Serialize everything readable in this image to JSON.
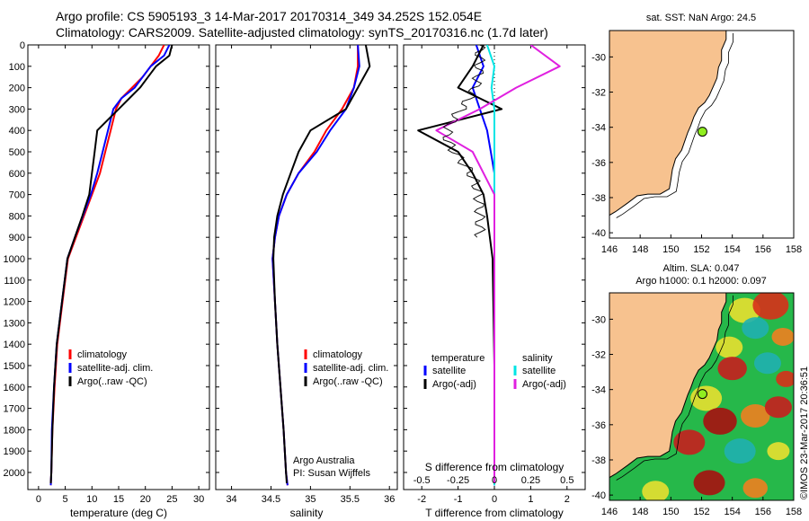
{
  "header": {
    "line1": "Argo profile: CS 5905193_3 14-Mar-2017 20170314_349 34.252S 152.054E",
    "line2": "Climatology: CARS2009. Satellite-adjusted climatology: synTS_20170316.nc (1.7d later)"
  },
  "stamp": "©IMOS 23-Mar-2017 20:36:51",
  "colors": {
    "climatology": "#ff0000",
    "satellite": "#0000ff",
    "argo": "#000000",
    "sal_satellite": "#00e5e5",
    "sal_argo": "#e020e0",
    "land": "#f7c28f",
    "float_marker": "#90ee20"
  },
  "chart_data": [
    {
      "id": "temperature",
      "type": "line",
      "xlabel": "temperature (deg C)",
      "ylabel": "",
      "xlim": [
        -2,
        32
      ],
      "ylim": [
        2080,
        0
      ],
      "xticks": [
        0,
        5,
        10,
        15,
        20,
        25,
        30
      ],
      "yticks": [
        0,
        100,
        200,
        300,
        400,
        500,
        600,
        700,
        800,
        900,
        1000,
        1100,
        1200,
        1300,
        1400,
        1500,
        1600,
        1700,
        1800,
        1900,
        2000
      ],
      "legend": {
        "position": "bottom-left",
        "entries": [
          "climatology",
          "satellite-adj. clim.",
          "Argo(..raw -QC)"
        ]
      },
      "series": [
        {
          "name": "climatology",
          "color": "#ff0000",
          "x": [
            23.5,
            22.5,
            21.0,
            19.5,
            17.5,
            15.5,
            14.5,
            13.5,
            12.5,
            11.5,
            10.0,
            8.5,
            7.0,
            5.5,
            4.5,
            3.5,
            3.0,
            2.6,
            2.4,
            2.3
          ],
          "y": [
            0,
            50,
            100,
            150,
            200,
            250,
            300,
            400,
            500,
            600,
            700,
            800,
            900,
            1000,
            1200,
            1400,
            1600,
            1800,
            2000,
            2060
          ]
        },
        {
          "name": "satellite-adj. clim.",
          "color": "#0000ff",
          "x": [
            24.5,
            23.5,
            21.0,
            19.5,
            18.0,
            15.5,
            14.0,
            13.0,
            12.0,
            11.0,
            9.8,
            8.3,
            6.8,
            5.4,
            4.4,
            3.4,
            2.9,
            2.5,
            2.4,
            2.3
          ],
          "y": [
            0,
            50,
            100,
            150,
            200,
            250,
            300,
            400,
            500,
            600,
            700,
            800,
            900,
            1000,
            1200,
            1400,
            1600,
            1800,
            2000,
            2060
          ]
        },
        {
          "name": "Argo(..raw -QC)",
          "color": "#000000",
          "x": [
            25.0,
            24.5,
            22.0,
            20.5,
            19.0,
            17.0,
            15.0,
            11.0,
            10.5,
            10.0,
            9.5,
            8.2,
            6.8,
            5.4,
            4.4,
            3.4,
            2.9,
            2.6,
            2.4,
            2.3
          ],
          "y": [
            0,
            50,
            100,
            150,
            200,
            250,
            300,
            400,
            500,
            600,
            700,
            800,
            900,
            1000,
            1200,
            1400,
            1600,
            1800,
            2000,
            2050
          ]
        }
      ]
    },
    {
      "id": "salinity",
      "type": "line",
      "xlabel": "salinity",
      "ylabel": "",
      "xlim": [
        33.8,
        36.1
      ],
      "ylim": [
        2080,
        0
      ],
      "xticks": [
        34,
        34.5,
        35,
        35.5,
        36
      ],
      "legend": {
        "position": "bottom-right",
        "entries": [
          "climatology",
          "satellite-adj. clim.",
          "Argo(..raw -QC)"
        ]
      },
      "annotation": [
        "Argo Australia",
        "PI: Susan Wijffels"
      ],
      "series": [
        {
          "name": "climatology",
          "color": "#ff0000",
          "x": [
            35.6,
            35.6,
            35.55,
            35.4,
            35.2,
            35.05,
            34.85,
            34.7,
            34.6,
            34.55,
            34.52,
            34.55,
            34.58,
            34.62,
            34.66,
            34.69,
            34.71
          ],
          "y": [
            0,
            100,
            200,
            300,
            400,
            500,
            600,
            700,
            800,
            900,
            1000,
            1200,
            1400,
            1600,
            1800,
            2000,
            2060
          ]
        },
        {
          "name": "satellite-adj. clim.",
          "color": "#0000ff",
          "x": [
            35.6,
            35.62,
            35.55,
            35.45,
            35.25,
            35.08,
            34.85,
            34.7,
            34.6,
            34.55,
            34.52,
            34.55,
            34.58,
            34.62,
            34.66,
            34.69,
            34.71
          ],
          "y": [
            0,
            100,
            200,
            300,
            400,
            500,
            600,
            700,
            800,
            900,
            1000,
            1200,
            1400,
            1600,
            1800,
            2000,
            2060
          ]
        },
        {
          "name": "Argo(..raw -QC)",
          "color": "#000000",
          "x": [
            35.7,
            35.75,
            35.6,
            35.45,
            35.0,
            34.85,
            34.75,
            34.65,
            34.58,
            34.54,
            34.53,
            34.55,
            34.58,
            34.62,
            34.66,
            34.69,
            34.7
          ],
          "y": [
            0,
            100,
            200,
            300,
            400,
            500,
            600,
            700,
            800,
            900,
            1000,
            1200,
            1400,
            1600,
            1800,
            2000,
            2050
          ]
        }
      ]
    },
    {
      "id": "difference",
      "type": "line",
      "xlabel": "T difference from climatology",
      "top_label": "S difference from climatology",
      "xlim": [
        -2.5,
        2.5
      ],
      "ylim": [
        2080,
        0
      ],
      "xticks": [
        -2,
        -1,
        0,
        1,
        2
      ],
      "secondary_xticks": [
        -0.5,
        -0.25,
        0,
        0.25,
        0.5
      ],
      "secondary_xticklabels": [
        "-0.5",
        "-0.25",
        "0",
        "0.25",
        "0.5"
      ],
      "legend": {
        "position": "bottom",
        "temperature_title": "temperature",
        "salinity_title": "salinity",
        "entries": [
          "satellite",
          "Argo(-adj)",
          "satellite",
          "Argo(-adj)"
        ]
      },
      "series": [
        {
          "name": "temperature satellite",
          "color": "#0000ff",
          "x": [
            -0.5,
            -0.3,
            -0.6,
            -0.4,
            -0.2,
            -0.1,
            0.0,
            0.0,
            0.0,
            0.0,
            0.0,
            0.0
          ],
          "y": [
            0,
            100,
            200,
            300,
            400,
            500,
            600,
            700,
            800,
            1000,
            1500,
            2060
          ]
        },
        {
          "name": "temperature Argo(-adj)",
          "color": "#000000",
          "x": [
            -0.3,
            -0.6,
            -1.0,
            0.2,
            -2.1,
            -1.0,
            -0.6,
            -0.3,
            -0.2,
            -0.05,
            0.0,
            0.0
          ],
          "y": [
            0,
            100,
            200,
            300,
            400,
            500,
            600,
            700,
            800,
            1000,
            1500,
            2050
          ]
        },
        {
          "name": "salinity satellite",
          "color": "#00e5e5",
          "x": [
            -0.05,
            0.0,
            -0.02,
            0.0,
            0.0,
            0.0,
            0.0,
            0.0
          ],
          "y": [
            0,
            100,
            200,
            300,
            400,
            600,
            1000,
            2060
          ]
        },
        {
          "name": "salinity Argo(-adj)",
          "color": "#e020e0",
          "x": [
            0.25,
            0.45,
            0.15,
            -0.1,
            -0.4,
            -0.15,
            0.0,
            0.0,
            0.0
          ],
          "y": [
            0,
            100,
            200,
            300,
            400,
            500,
            700,
            1000,
            2050
          ]
        }
      ]
    },
    {
      "id": "sst_map",
      "type": "map",
      "title": "sat. SST: NaN Argo: 24.5",
      "xticks": [
        146,
        148,
        150,
        152,
        154,
        156,
        158
      ],
      "yticks": [
        -30,
        -32,
        -34,
        -36,
        -38,
        -40
      ],
      "xlim": [
        146,
        158
      ],
      "ylim": [
        -40.3,
        -28.5
      ],
      "float_position": {
        "lon": 152.054,
        "lat": -34.252
      }
    },
    {
      "id": "sla_map",
      "type": "map",
      "title_lines": [
        "Altim. SLA: 0.047",
        "Argo h1000: 0.1 h2000: 0.097"
      ],
      "xticks": [
        146,
        148,
        150,
        152,
        154,
        156,
        158
      ],
      "yticks": [
        -30,
        -32,
        -34,
        -36,
        -38,
        -40
      ],
      "xlim": [
        146,
        158
      ],
      "ylim": [
        -40.3,
        -28.5
      ],
      "float_position": {
        "lon": 152.054,
        "lat": -34.252
      }
    }
  ]
}
